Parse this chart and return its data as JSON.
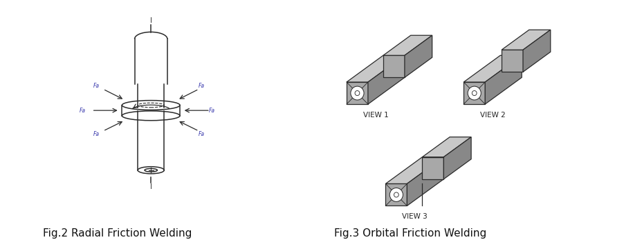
{
  "fig_width": 9.02,
  "fig_height": 3.64,
  "line_color": "#2a2a2a",
  "blue_label_color": "#3333aa",
  "fig2_caption": "Fig.2 Radial Friction Welding",
  "fig3_caption": "Fig.3 Orbital Friction Welding",
  "caption_fontsize": 11,
  "view_label_fontsize": 7.5,
  "view1_label": "VIEW 1",
  "view2_label": "VIEW 2",
  "view3_label": "VIEW 3",
  "gray_front": "#a8a8a8",
  "gray_top": "#c8c8c8",
  "gray_right": "#888888"
}
